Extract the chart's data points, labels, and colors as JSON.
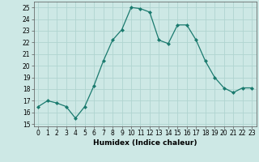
{
  "x": [
    0,
    1,
    2,
    3,
    4,
    5,
    6,
    7,
    8,
    9,
    10,
    11,
    12,
    13,
    14,
    15,
    16,
    17,
    18,
    19,
    20,
    21,
    22,
    23
  ],
  "y": [
    16.5,
    17.0,
    16.8,
    16.5,
    15.5,
    16.5,
    18.3,
    20.4,
    22.2,
    23.1,
    25.0,
    24.9,
    24.6,
    22.2,
    21.9,
    23.5,
    23.5,
    22.2,
    20.4,
    19.0,
    18.1,
    17.7,
    18.1,
    18.1
  ],
  "line_color": "#1a7a6e",
  "marker": "D",
  "marker_size": 2,
  "bg_color": "#cde8e5",
  "grid_color": "#b0d4d0",
  "xlabel": "Humidex (Indice chaleur)",
  "ylabel_ticks": [
    15,
    16,
    17,
    18,
    19,
    20,
    21,
    22,
    23,
    24,
    25
  ],
  "ylim": [
    14.8,
    25.5
  ],
  "xlim": [
    -0.5,
    23.5
  ],
  "tick_fontsize": 5.5,
  "xlabel_fontsize": 6.5
}
